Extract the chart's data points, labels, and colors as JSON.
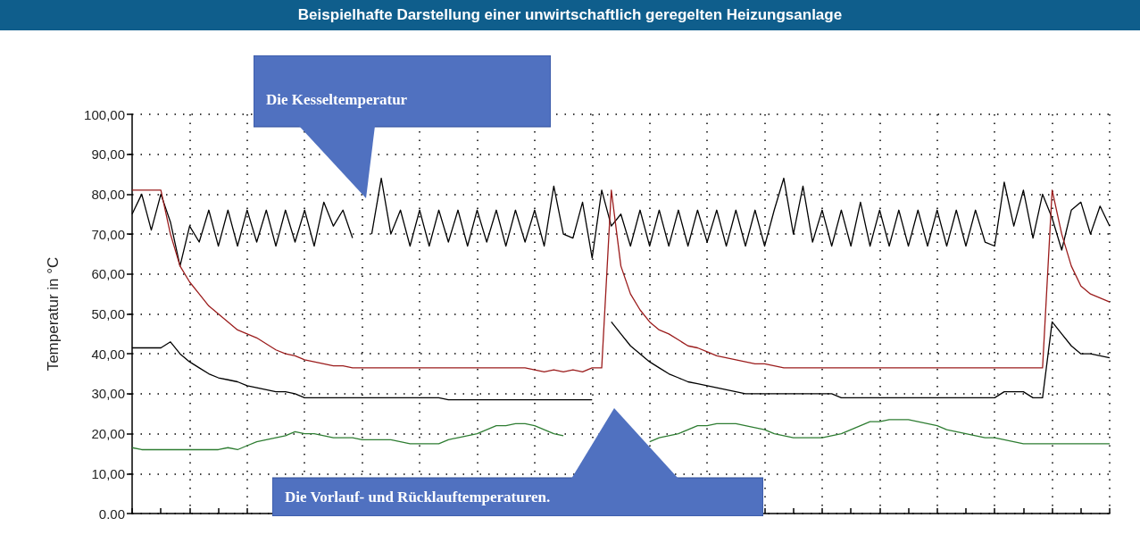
{
  "chart_data": {
    "type": "line",
    "title": "Beispielhafte Darstellung einer unwirtschaftlich geregelten Heizungsanlage",
    "ylabel": "Temperatur in °C",
    "annotations": [
      "Die Kesseltemperatur",
      "Die Vorlauf- und Rücklauftemperaturen."
    ],
    "categories": [
      null,
      null,
      null,
      null,
      null,
      null,
      null,
      null,
      null,
      null,
      null,
      null,
      null,
      null,
      null,
      null,
      null,
      null,
      null,
      null,
      null,
      null,
      null,
      null,
      null,
      null,
      null,
      null,
      null,
      null,
      null,
      null,
      null,
      null,
      null,
      null,
      null,
      null,
      null,
      null,
      null,
      null,
      null,
      null,
      null,
      null,
      null,
      null,
      null,
      null,
      null,
      null,
      null,
      null,
      null,
      null,
      null,
      null,
      null,
      null,
      null,
      null,
      null,
      null,
      null,
      null,
      null,
      null,
      null,
      null,
      null,
      null,
      null,
      null,
      null,
      null,
      null,
      null,
      null,
      null,
      null,
      null,
      null,
      null,
      null,
      null,
      null,
      null,
      null,
      null,
      null,
      null,
      null,
      null,
      null,
      null,
      null,
      null,
      null,
      null,
      null,
      null,
      null
    ],
    "series": [
      {
        "color": "#000000",
        "values": [
          75,
          80,
          71,
          80,
          73,
          62,
          72,
          68,
          76,
          67,
          76,
          67,
          76,
          68,
          76,
          67,
          76,
          68,
          76,
          67,
          78,
          72,
          76,
          69,
          null,
          70,
          84,
          70,
          76,
          67,
          76,
          67,
          76,
          68,
          76,
          67,
          76,
          68,
          76,
          67,
          76,
          68,
          76,
          67,
          82,
          70,
          69,
          78,
          64,
          81,
          72,
          75,
          67,
          76,
          67,
          76,
          67,
          76,
          67,
          76,
          68,
          76,
          67,
          76,
          67,
          76,
          67,
          76,
          84,
          70,
          82,
          68,
          76,
          67,
          76,
          67,
          78,
          67,
          76,
          67,
          76,
          67,
          76,
          67,
          76,
          67,
          76,
          67,
          76,
          68,
          67,
          83,
          72,
          81,
          69,
          80,
          74,
          66,
          76,
          78,
          70,
          77,
          72
        ]
      },
      {
        "color": "#9b1c1c",
        "values": [
          81,
          81,
          81,
          81,
          70,
          62,
          58,
          55,
          52,
          50,
          48,
          46,
          45,
          44,
          42.5,
          41,
          40,
          39.5,
          38.5,
          38,
          37.5,
          37,
          37,
          36.5,
          36.5,
          36.5,
          36.5,
          36.5,
          36.5,
          36.5,
          36.5,
          36.5,
          36.5,
          36.5,
          36.5,
          36.5,
          36.5,
          36.5,
          36.5,
          36.5,
          36.5,
          36.5,
          36,
          35.5,
          36,
          35.5,
          36,
          35.5,
          36.5,
          36.5,
          81,
          62,
          55,
          51,
          48,
          46,
          45,
          43.5,
          42,
          41.5,
          40.5,
          39.5,
          39,
          38.5,
          38,
          37.5,
          37.5,
          37,
          36.5,
          36.5,
          36.5,
          36.5,
          36.5,
          36.5,
          36.5,
          36.5,
          36.5,
          36.5,
          36.5,
          36.5,
          36.5,
          36.5,
          36.5,
          36.5,
          36.5,
          36.5,
          36.5,
          36.5,
          36.5,
          36.5,
          36.5,
          36.5,
          36.5,
          36.5,
          36.5,
          36.5,
          81,
          70,
          62,
          57,
          55,
          54,
          53
        ]
      },
      {
        "color": "#000000",
        "values": [
          41.5,
          41.5,
          41.5,
          41.5,
          43,
          40,
          38,
          36.5,
          35,
          34,
          33.5,
          33,
          32,
          31.5,
          31,
          30.5,
          30.5,
          30,
          29,
          29,
          29,
          29,
          29,
          29,
          29,
          29,
          29,
          29,
          29,
          29,
          29,
          29,
          29,
          28.5,
          28.5,
          28.5,
          28.5,
          28.5,
          28.5,
          28.5,
          28.5,
          28.5,
          28.5,
          28.5,
          28.5,
          28.5,
          28.5,
          28.5,
          28.5,
          null,
          48,
          45,
          42,
          40,
          38,
          36.5,
          35,
          34,
          33,
          32.5,
          32,
          31.5,
          31,
          30.5,
          30,
          30,
          30,
          30,
          30,
          30,
          30,
          30,
          30,
          30,
          29,
          29,
          29,
          29,
          29,
          29,
          29,
          29,
          29,
          29,
          29,
          29,
          29,
          29,
          29,
          29,
          29,
          30.5,
          30.5,
          30.5,
          29,
          29,
          48,
          45,
          42,
          40,
          40,
          39.5,
          39
        ]
      },
      {
        "color": "#2e7d32",
        "values": [
          16.5,
          16,
          16,
          16,
          16,
          16,
          16,
          16,
          16,
          16,
          16.5,
          16,
          17,
          18,
          18.5,
          19,
          19.5,
          20.5,
          20,
          20,
          19.5,
          19,
          19,
          19,
          18.5,
          18.5,
          18.5,
          18.5,
          18,
          17.5,
          17.5,
          17.5,
          17.5,
          18.5,
          19,
          19.5,
          20,
          21,
          22,
          22,
          22.5,
          22.5,
          22,
          21,
          20,
          19.5,
          null,
          null,
          null,
          null,
          null,
          null,
          null,
          null,
          18,
          19,
          19.5,
          20,
          21,
          22,
          22,
          22.5,
          22.5,
          22.5,
          22,
          21.5,
          21,
          20,
          19.5,
          19,
          19,
          19,
          19,
          19.5,
          20,
          21,
          22,
          23,
          23,
          23.5,
          23.5,
          23.5,
          23,
          22.5,
          22,
          21,
          20.5,
          20,
          19.5,
          19,
          19,
          18.5,
          18,
          17.5,
          17.5,
          17.5,
          17.5,
          17.5,
          17.5,
          17.5,
          17.5,
          17.5,
          17.5
        ]
      }
    ],
    "ylim": [
      0,
      100
    ],
    "yticks": [
      {
        "value": 0,
        "label": "0.00"
      },
      {
        "value": 10,
        "label": "10,00"
      },
      {
        "value": 20,
        "label": "20,00"
      },
      {
        "value": 30,
        "label": "30,00"
      },
      {
        "value": 40,
        "label": "40,00"
      },
      {
        "value": 50,
        "label": "50,00"
      },
      {
        "value": 60,
        "label": "60,00"
      },
      {
        "value": 70,
        "label": "70,00"
      },
      {
        "value": 80,
        "label": "80,00"
      },
      {
        "value": 90,
        "label": "90,00"
      },
      {
        "value": 100,
        "label": "100,00"
      }
    ],
    "grid": true,
    "tick_labels": "y"
  }
}
